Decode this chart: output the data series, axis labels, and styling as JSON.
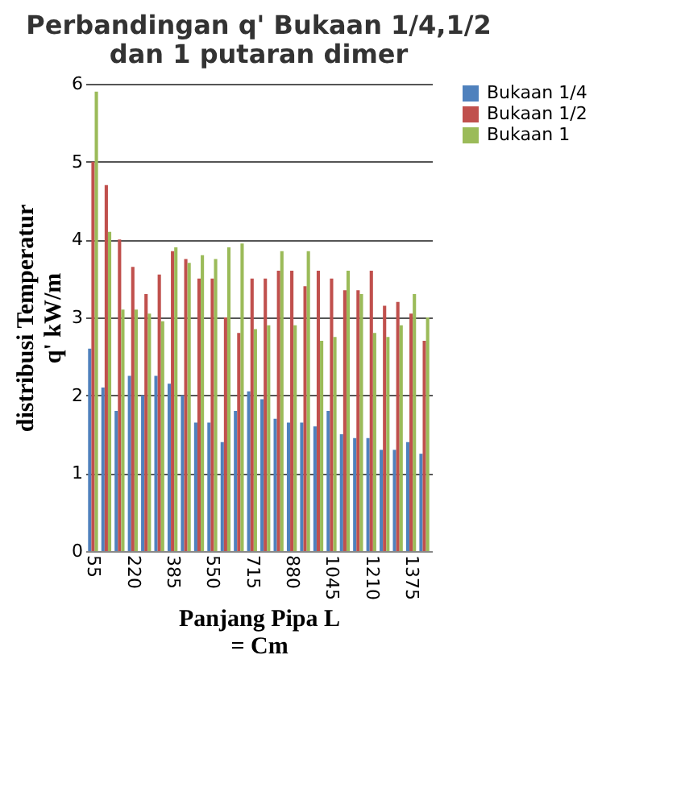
{
  "chart_data": {
    "type": "bar",
    "title": "Perbandingan q' Bukaan 1/4,1/2 dan 1 putaran dimer",
    "xlabel": "Panjang Pipa L = Cm",
    "ylabel": "distribusi Temperatur q' kW/m",
    "categories": [
      "55",
      null,
      null,
      "220",
      null,
      null,
      "385",
      null,
      null,
      "550",
      null,
      null,
      "715",
      null,
      null,
      "880",
      null,
      null,
      "1045",
      null,
      null,
      "1210",
      null,
      null,
      "1375",
      null
    ],
    "series": [
      {
        "name": "Bukaan 1/4",
        "color": "#4f81bd",
        "values": [
          2.6,
          2.1,
          1.8,
          2.25,
          2.0,
          2.25,
          2.15,
          2.0,
          1.65,
          1.65,
          1.4,
          1.8,
          2.05,
          1.95,
          1.7,
          1.65,
          1.65,
          1.6,
          1.8,
          1.5,
          1.45,
          1.45,
          1.3,
          1.3,
          1.4,
          1.25
        ]
      },
      {
        "name": "Bukaan 1/2",
        "color": "#c0504d",
        "values": [
          5.0,
          4.7,
          4.0,
          3.65,
          3.3,
          3.55,
          3.85,
          3.75,
          3.5,
          3.5,
          3.0,
          2.8,
          3.5,
          3.5,
          3.6,
          3.6,
          3.4,
          3.6,
          3.5,
          3.35,
          3.35,
          3.6,
          3.15,
          3.2,
          3.05,
          2.7
        ]
      },
      {
        "name": "Bukaan 1",
        "color": "#9bbb59",
        "values": [
          5.9,
          4.1,
          3.1,
          3.1,
          3.05,
          2.95,
          3.9,
          3.7,
          3.8,
          3.75,
          3.9,
          3.95,
          2.85,
          2.9,
          3.85,
          2.9,
          3.85,
          2.7,
          2.75,
          3.6,
          3.3,
          2.8,
          2.75,
          2.9,
          3.3,
          3.0
        ]
      }
    ],
    "ylim": [
      0,
      6
    ],
    "yticks": [
      0,
      1,
      2,
      3,
      4,
      5,
      6
    ],
    "grid": "y",
    "legend": "right"
  }
}
